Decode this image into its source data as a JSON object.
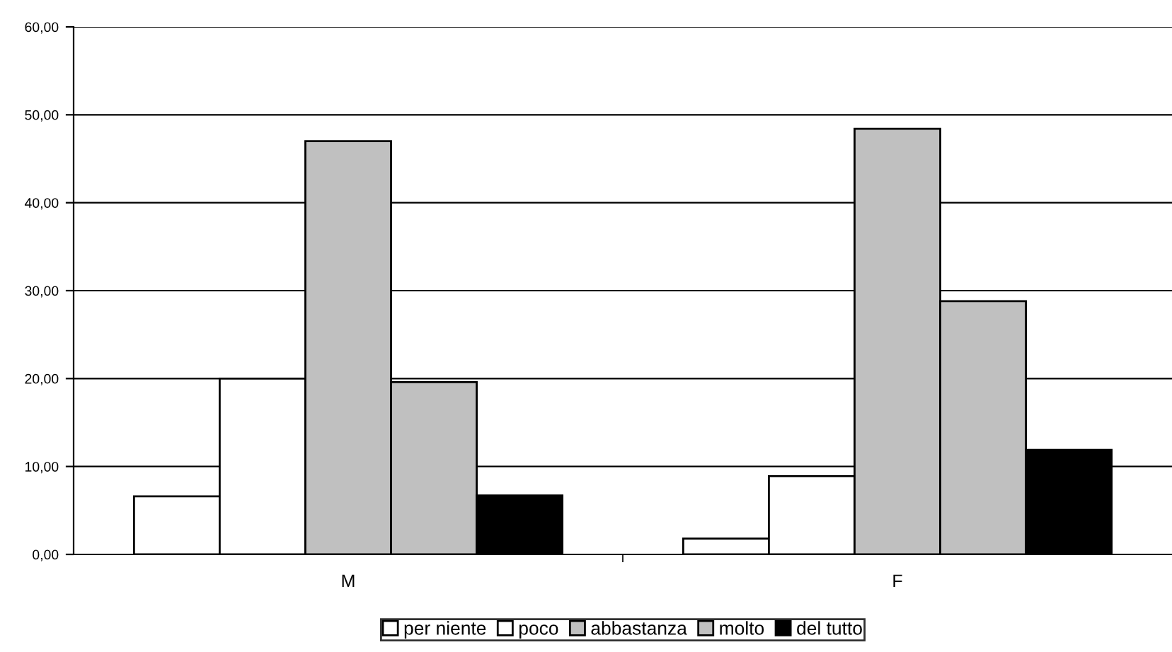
{
  "chart_data": {
    "type": "bar",
    "categories": [
      "M",
      "F"
    ],
    "series": [
      {
        "name": "per niente",
        "color": "#ffffff",
        "values": [
          6.6,
          1.8
        ]
      },
      {
        "name": "poco",
        "color": "#ffffff",
        "values": [
          20.0,
          8.9
        ]
      },
      {
        "name": "abbastanza",
        "color": "#c0c0c0",
        "values": [
          47.0,
          48.4
        ]
      },
      {
        "name": "molto",
        "color": "#c0c0c0",
        "values": [
          19.6,
          28.8
        ]
      },
      {
        "name": "del tutto",
        "color": "#000000",
        "values": [
          6.7,
          11.9
        ]
      }
    ],
    "ylim": [
      0,
      60
    ],
    "yticks": [
      {
        "value": 0,
        "label": "0,00"
      },
      {
        "value": 10,
        "label": "10,00"
      },
      {
        "value": 20,
        "label": "20,00"
      },
      {
        "value": 30,
        "label": "30,00"
      },
      {
        "value": 40,
        "label": "40,00"
      },
      {
        "value": 50,
        "label": "50,00"
      },
      {
        "value": 60,
        "label": "60,00"
      }
    ],
    "grid": "y",
    "legend": "bottom"
  }
}
